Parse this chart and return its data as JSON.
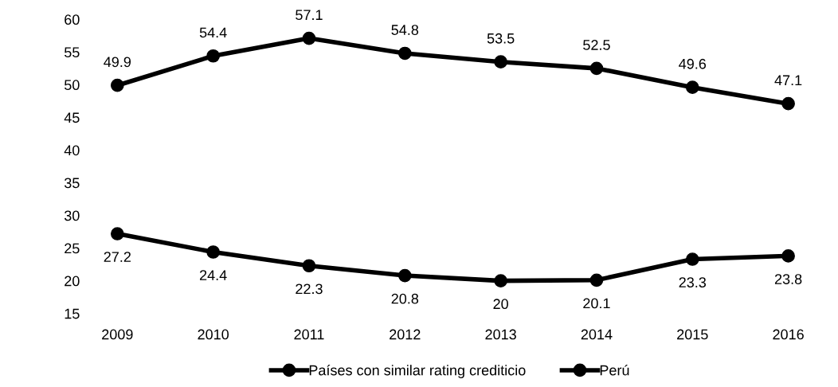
{
  "chart_data": {
    "type": "line",
    "categories": [
      "2009",
      "2010",
      "2011",
      "2012",
      "2013",
      "2014",
      "2015",
      "2016"
    ],
    "series": [
      {
        "name": "Países con similar rating crediticio",
        "color": "#000000",
        "values": [
          49.9,
          54.4,
          57.1,
          54.8,
          53.5,
          52.5,
          49.6,
          47.1
        ]
      },
      {
        "name": "Perú",
        "color": "#000000",
        "values": [
          27.2,
          24.4,
          22.3,
          20.8,
          20,
          20.1,
          23.3,
          23.8
        ]
      }
    ],
    "ylim": [
      15,
      60
    ],
    "yticks": [
      15,
      20,
      25,
      30,
      35,
      40,
      45,
      50,
      55,
      60
    ],
    "grid": false,
    "legend": "bottom",
    "marker": "circle",
    "line_style": "solid",
    "data_labels": true
  }
}
